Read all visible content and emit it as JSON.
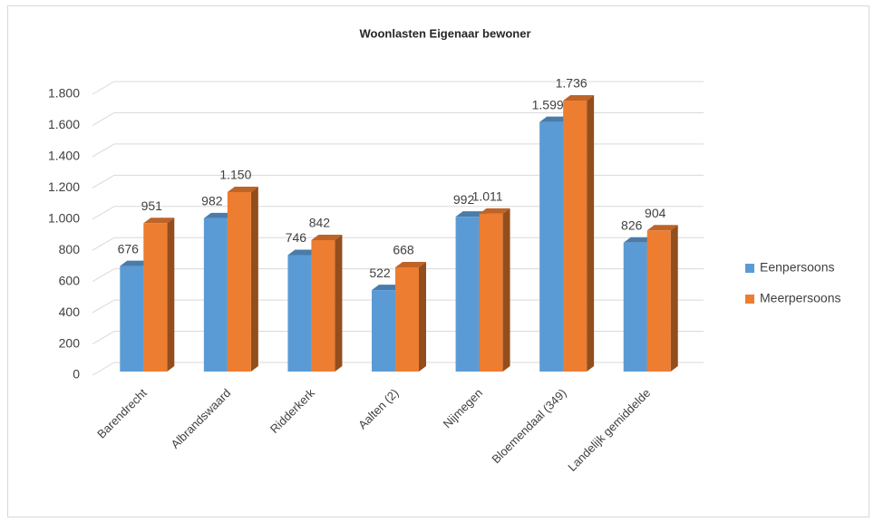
{
  "chart_data": {
    "type": "bar3d",
    "title": "Woonlasten Eigenaar bewoner",
    "categories": [
      "Barendrecht",
      "Albrandswaard",
      "Ridderkerk",
      "Aalten (2)",
      "Nijmegen",
      "Bloemendaal (349)",
      "Landelijk gemiddelde"
    ],
    "series": [
      {
        "name": "Eenpersoons",
        "color": "#5b9bd5",
        "values": [
          676,
          982,
          746,
          522,
          992,
          1599,
          826
        ],
        "value_labels": [
          "676",
          "982",
          "746",
          "522",
          "992",
          "1.599",
          "826"
        ]
      },
      {
        "name": "Meerpersoons",
        "color": "#ed7d31",
        "values": [
          951,
          1150,
          842,
          668,
          1011,
          1736,
          904
        ],
        "value_labels": [
          "951",
          "1.150",
          "842",
          "668",
          "1.011",
          "1.736",
          "904"
        ]
      }
    ],
    "ylim": [
      0,
      1800
    ],
    "yticks": [
      0,
      200,
      400,
      600,
      800,
      {
        "value": 1000,
        "label": "1.000"
      },
      {
        "value": 1200,
        "label": "1.200"
      },
      {
        "value": 1400,
        "label": "1.400"
      },
      {
        "value": 1600,
        "label": "1.600"
      },
      {
        "value": 1800,
        "label": "1.800"
      }
    ],
    "grid": true,
    "legend": "right"
  }
}
